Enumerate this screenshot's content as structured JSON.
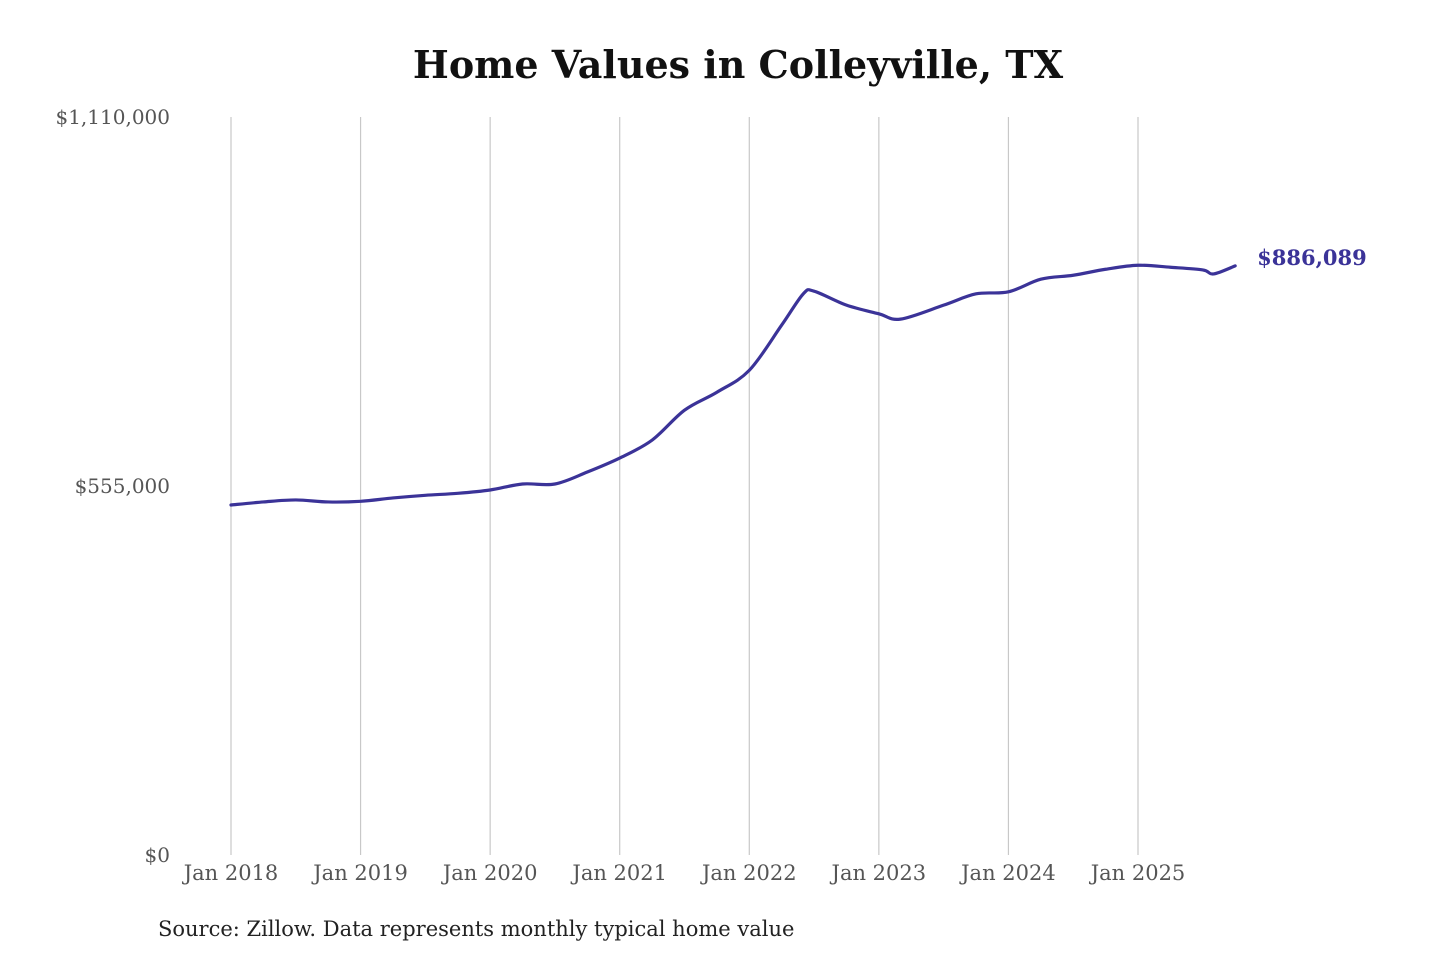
{
  "chart_data": {
    "type": "line",
    "title": "Home Values in Colleyville, TX",
    "source": "Source: Zillow. Data represents monthly typical home value",
    "xlabel": "",
    "ylabel": "",
    "ylim": [
      0,
      1110000
    ],
    "y_ticks": [
      0,
      555000,
      1110000
    ],
    "y_tick_labels": [
      "$0",
      "$555,000",
      "$1,110,000"
    ],
    "x_ticks": [
      "2018-01",
      "2019-01",
      "2020-01",
      "2021-01",
      "2022-01",
      "2023-01",
      "2024-01",
      "2025-01"
    ],
    "x_tick_labels": [
      "Jan 2018",
      "Jan 2019",
      "Jan 2020",
      "Jan 2021",
      "Jan 2022",
      "Jan 2023",
      "Jan 2024",
      "Jan 2025"
    ],
    "grid": "vertical",
    "line_color": "#3b3398",
    "end_label": "$886,089",
    "x": [
      "2018-01",
      "2018-04",
      "2018-07",
      "2018-10",
      "2019-01",
      "2019-04",
      "2019-07",
      "2019-10",
      "2020-01",
      "2020-04",
      "2020-07",
      "2020-10",
      "2021-01",
      "2021-04",
      "2021-07",
      "2021-10",
      "2022-01",
      "2022-04",
      "2022-06",
      "2022-07",
      "2022-10",
      "2023-01",
      "2023-03",
      "2023-07",
      "2023-10",
      "2024-01",
      "2024-04",
      "2024-07",
      "2024-10",
      "2025-01",
      "2025-04",
      "2025-07",
      "2025-08",
      "2025-10"
    ],
    "values": [
      526400,
      531000,
      534000,
      531000,
      532000,
      537000,
      541000,
      544000,
      549000,
      558000,
      558000,
      576000,
      597000,
      624000,
      669000,
      696000,
      729000,
      797000,
      844000,
      848000,
      827000,
      814000,
      806000,
      827000,
      844000,
      847000,
      866000,
      872000,
      881000,
      887000,
      884000,
      880000,
      874000,
      886089
    ]
  }
}
